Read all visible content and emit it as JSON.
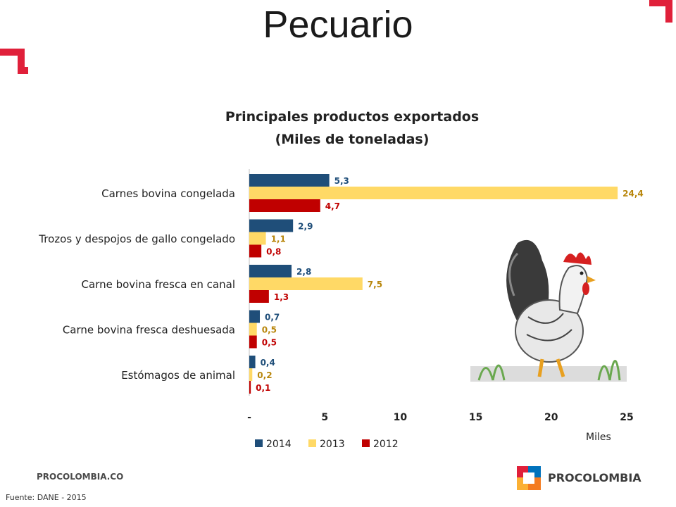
{
  "slide": {
    "title": "Pecuario",
    "footer_site": "PROCOLOMBIA.CO",
    "source": "Fuente: DANE - 2015",
    "brand": "PROCOLOMBIA",
    "illustration": "rooster-illustration",
    "accent_color": "#e0203a"
  },
  "chart_data": {
    "type": "bar",
    "orientation": "horizontal",
    "title_line1": "Principales productos exportados",
    "title_line2": "(Miles de toneladas)",
    "categories": [
      "Carnes bovina congelada",
      "Trozos y despojos de gallo congelado",
      "Carne bovina fresca en canal",
      "Carne bovina fresca deshuesada",
      "Estómagos de animal"
    ],
    "series": [
      {
        "name": "2014",
        "color": "#1f4e79",
        "label_color": "#1f4e79",
        "values": [
          5.3,
          2.9,
          2.8,
          0.7,
          0.4
        ],
        "labels": [
          "5,3",
          "2,9",
          "2,8",
          "0,7",
          "0,4"
        ]
      },
      {
        "name": "2013",
        "color": "#ffd966",
        "label_color": "#b8860b",
        "values": [
          24.4,
          1.1,
          7.5,
          0.5,
          0.2
        ],
        "labels": [
          "24,4",
          "1,1",
          "7,5",
          "0,5",
          "0,2"
        ]
      },
      {
        "name": "2012",
        "color": "#c00000",
        "label_color": "#c00000",
        "values": [
          4.7,
          0.8,
          1.3,
          0.5,
          0.1
        ],
        "labels": [
          "4,7",
          "0,8",
          "1,3",
          "0,5",
          "0,1"
        ]
      }
    ],
    "xlim": [
      0,
      25
    ],
    "xticks": [
      "-",
      "5",
      "10",
      "15",
      "20",
      "25"
    ],
    "xunit": "Miles",
    "legend_position": "bottom",
    "grid": false
  }
}
